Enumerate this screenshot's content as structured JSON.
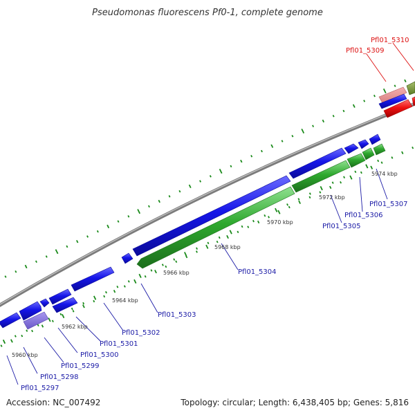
{
  "title": "Pseudomonas fluorescens Pf0-1, complete genome",
  "footer": {
    "accession": "Accession: NC_007492",
    "summary": "Topology: circular; Length: 6,438,405 bp; Genes: 5,816"
  },
  "colors": {
    "backbone": "#8c8c8c",
    "forward_genes": "#1515e8",
    "reverse_genes": "#2ea82e",
    "highlight_genes": "#e01010",
    "pseudo_gene": "#7b68d8",
    "tick_marks": "#1a8a1a",
    "blue_labels": "#1a1aa6",
    "red_labels": "#dd1111"
  },
  "scale_labels": [
    "5960 kbp",
    "5962 kbp",
    "5964 kbp",
    "5966 kbp",
    "5968 kbp",
    "5970 kbp",
    "5972 kbp",
    "5974 kbp"
  ],
  "gene_labels": [
    {
      "text": "Pfl01_5297",
      "color": "blue"
    },
    {
      "text": "Pfl01_5298",
      "color": "blue"
    },
    {
      "text": "Pfl01_5299",
      "color": "blue"
    },
    {
      "text": "Pfl01_5300",
      "color": "blue"
    },
    {
      "text": "Pfl01_5301",
      "color": "blue"
    },
    {
      "text": "Pfl01_5302",
      "color": "blue"
    },
    {
      "text": "Pfl01_5303",
      "color": "blue"
    },
    {
      "text": "Pfl01_5304",
      "color": "blue"
    },
    {
      "text": "Pfl01_5305",
      "color": "blue"
    },
    {
      "text": "Pfl01_5306",
      "color": "blue"
    },
    {
      "text": "Pfl01_5307",
      "color": "blue"
    },
    {
      "text": "Pfl01_5309",
      "color": "red"
    },
    {
      "text": "Pfl01_5310",
      "color": "red"
    }
  ]
}
